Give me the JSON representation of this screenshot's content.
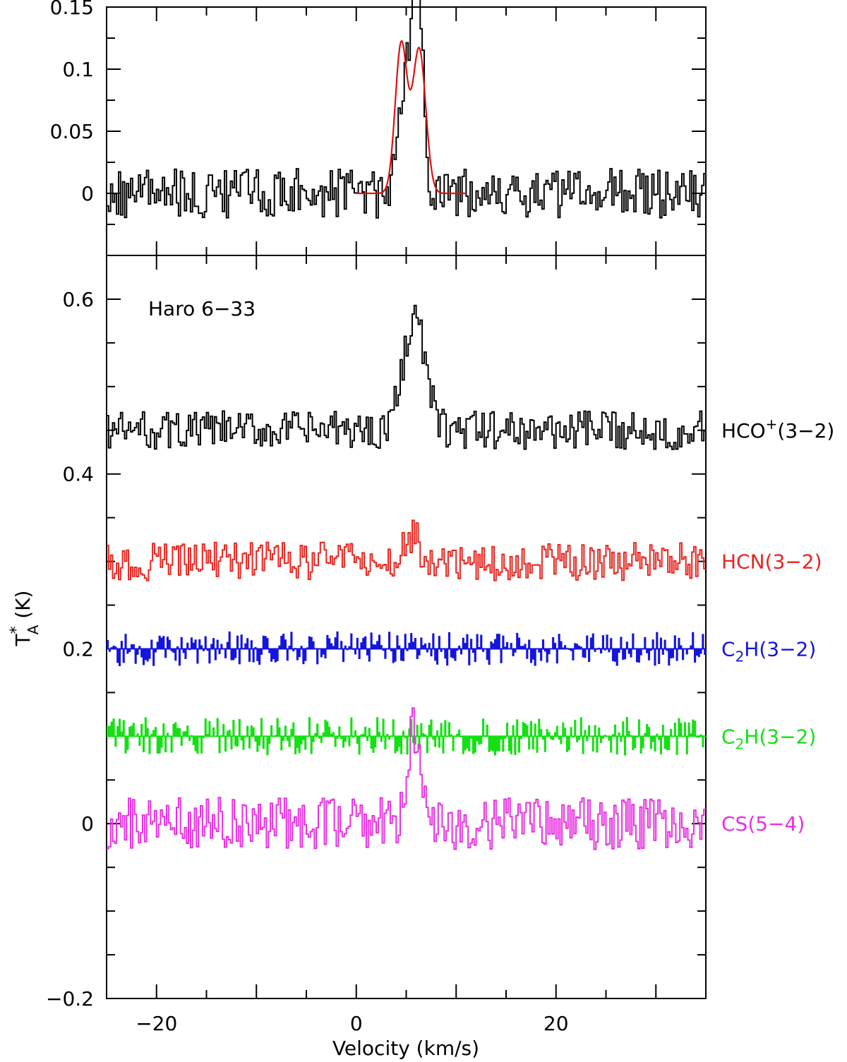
{
  "chart_data": [
    {
      "type": "line",
      "panel": "top",
      "xlim": [
        -25,
        35
      ],
      "ylim": [
        -0.05,
        0.15
      ],
      "yticks": [
        0,
        0.05,
        0.1,
        0.15
      ],
      "ytick_labels": [
        "0",
        "0.05",
        "0.1",
        "0.15"
      ],
      "grid": false,
      "series": [
        {
          "color": "#000000",
          "style": "histogram",
          "offset": 0,
          "noise_amplitude": 0.02,
          "peaks": [
            {
              "center": 5.0,
              "amplitude": 0.09,
              "sigma": 0.75
            },
            {
              "center": 6.2,
              "amplitude": 0.135,
              "sigma": 0.55
            }
          ]
        },
        {
          "color": "#e01010",
          "style": "smooth",
          "x_range": [
            0,
            11
          ],
          "peaks": [
            {
              "center": 4.5,
              "amplitude": 0.12,
              "sigma": 0.6
            },
            {
              "center": 6.3,
              "amplitude": 0.116,
              "sigma": 0.65
            }
          ]
        }
      ]
    },
    {
      "type": "line",
      "panel": "bottom",
      "xlim": [
        -25,
        35
      ],
      "ylim": [
        -0.2,
        0.65
      ],
      "xticks": [
        -20,
        0,
        20
      ],
      "xtick_labels": [
        "−20",
        "0",
        "20"
      ],
      "yticks": [
        -0.2,
        0,
        0.2,
        0.4,
        0.6
      ],
      "ytick_labels": [
        "−0.2",
        "0",
        "0.2",
        "0.4",
        "0.6"
      ],
      "xlabel": "Velocity (km/s)",
      "ylabel": "T",
      "ylabel_sup": "*",
      "ylabel_sub": "A",
      "ylabel_unit": " (K)",
      "annotation": "Haro 6−33",
      "grid": false,
      "series": [
        {
          "label_main": "HCO",
          "label_sup": "+",
          "label_sub": "",
          "label_tail": "(3−2)",
          "color": "#000000",
          "style": "histogram",
          "offset": 0.45,
          "noise_amplitude": 0.022,
          "peaks": [
            {
              "center": 5.8,
              "amplitude": 0.13,
              "sigma": 1.1
            }
          ]
        },
        {
          "label_main": "HCN",
          "label_sup": "",
          "label_sub": "",
          "label_tail": "(3−2)",
          "color": "#e8241e",
          "style": "histogram",
          "offset": 0.3,
          "noise_amplitude": 0.022,
          "peaks": [
            {
              "center": 5.5,
              "amplitude": 0.03,
              "sigma": 0.8
            }
          ]
        },
        {
          "label_main": "C",
          "label_sup": "",
          "label_sub": "2",
          "label_tail": "H(3−2)",
          "color": "#1414e0",
          "style": "bars",
          "offset": 0.2,
          "noise_amplitude": 0.02,
          "peaks": []
        },
        {
          "label_main": "C",
          "label_sup": "",
          "label_sub": "2",
          "label_tail": "H(3−2)",
          "color": "#14e014",
          "style": "bars",
          "offset": 0.1,
          "noise_amplitude": 0.022,
          "peaks": []
        },
        {
          "label_main": "CS",
          "label_sup": "",
          "label_sub": "",
          "label_tail": "(5−4)",
          "color": "#e830e0",
          "style": "histogram",
          "offset": 0.0,
          "noise_amplitude": 0.03,
          "peaks": [
            {
              "center": 5.8,
              "amplitude": 0.11,
              "sigma": 0.7
            }
          ]
        }
      ]
    }
  ]
}
